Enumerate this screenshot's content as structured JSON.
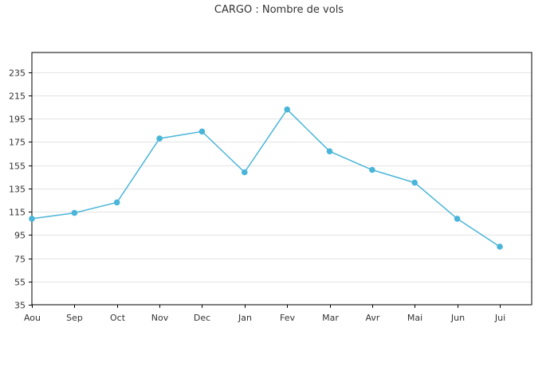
{
  "chart_data": {
    "type": "line",
    "title": "CARGO : Nombre de vols",
    "xlabel": "",
    "ylabel": "",
    "categories": [
      "Aou",
      "Sep",
      "Oct",
      "Nov",
      "Dec",
      "Jan",
      "Fev",
      "Mar",
      "Avr",
      "Mai",
      "Jun",
      "Jui"
    ],
    "series": [
      {
        "values": [
          109,
          114,
          123,
          178,
          184,
          149,
          203,
          167,
          151,
          140,
          109,
          85
        ]
      }
    ],
    "yticks": [
      35,
      55,
      75,
      95,
      115,
      135,
      155,
      175,
      195,
      215,
      235
    ],
    "ylim": [
      35,
      252
    ],
    "grid": true,
    "colors": {
      "series": "#4ab5d9",
      "grid": "#e3e3e3",
      "axis": "#000000"
    }
  }
}
